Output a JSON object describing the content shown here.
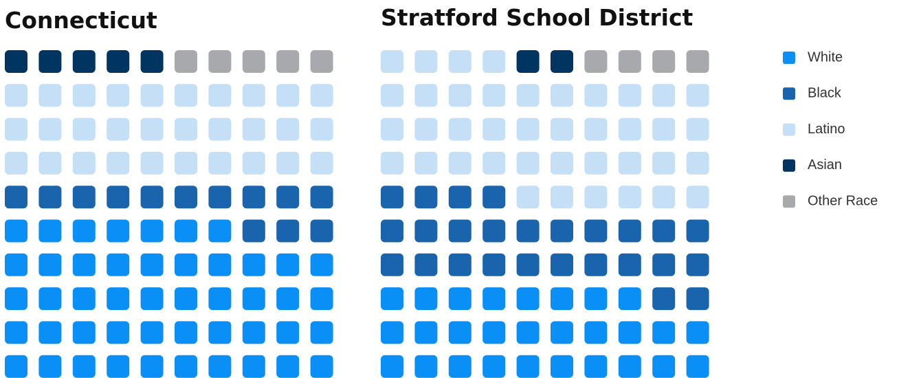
{
  "chart_data": [
    {
      "type": "waffle",
      "title": "Connecticut",
      "categories": [
        "White",
        "Black",
        "Latino",
        "Asian",
        "Other Race"
      ],
      "values": [
        47,
        13,
        30,
        5,
        5
      ],
      "colors": [
        "#0a8ff7",
        "#1a64ad",
        "#c4dff6",
        "#003561",
        "#a7a9ac"
      ]
    },
    {
      "type": "waffle",
      "title": "Stratford School District",
      "categories": [
        "White",
        "Black",
        "Latino",
        "Asian",
        "Other Race"
      ],
      "values": [
        28,
        26,
        40,
        2,
        4
      ],
      "colors": [
        "#0a8ff7",
        "#1a64ad",
        "#c4dff6",
        "#003561",
        "#a7a9ac"
      ]
    }
  ]
}
